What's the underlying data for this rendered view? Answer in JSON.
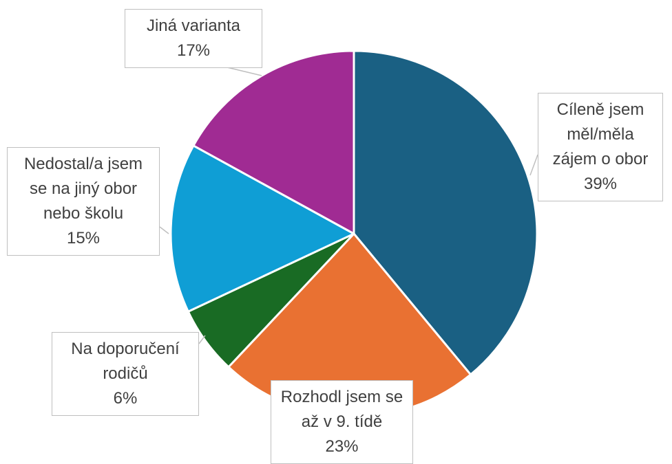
{
  "chart_data": {
    "type": "pie",
    "categories": [
      "Cíleně jsem měl/měla zájem o obor",
      "Rozhodl jsem se až v 9. tídě",
      "Na doporučení rodičů",
      "Nedostal/a jsem se na jiný obor nebo školu",
      "Jiná varianta"
    ],
    "values": [
      39,
      23,
      6,
      15,
      17
    ],
    "value_labels": [
      "39%",
      "23%",
      "6%",
      "15%",
      "17%"
    ],
    "colors": [
      "#1a6083",
      "#e97132",
      "#196b24",
      "#0f9ed5",
      "#a02b93"
    ]
  }
}
